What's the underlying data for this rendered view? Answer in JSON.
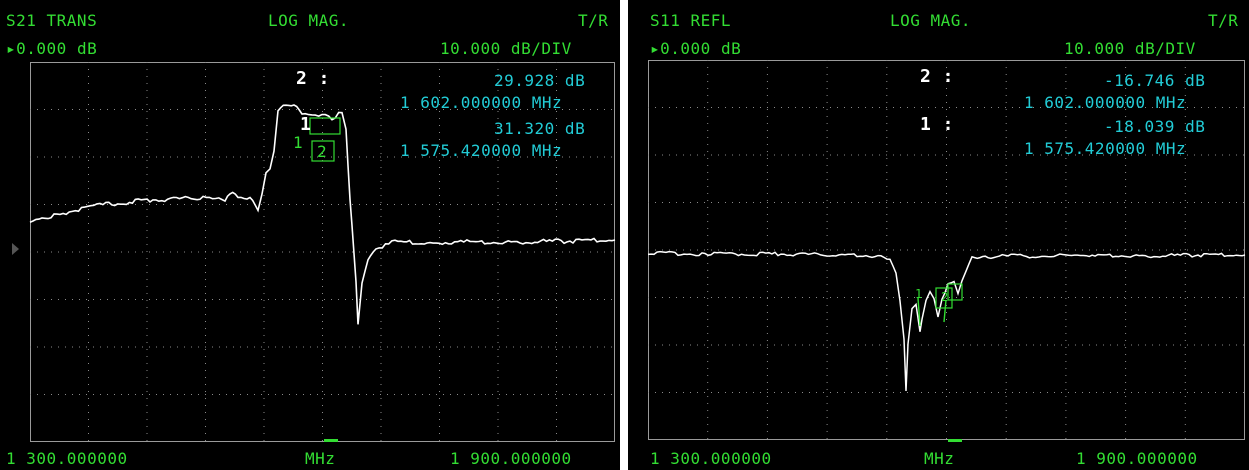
{
  "screens": [
    {
      "param": "S21 TRANS",
      "format": "LOG MAG.",
      "path": "T/R",
      "ref": "0.000 dB",
      "scale": "10.000 dB/DIV",
      "start": "1 300.000000",
      "units": "MHz",
      "stop": "1 900.000000",
      "marker2": {
        "label": "2 :",
        "value": "29.928 dB",
        "freq": "1 602.000000 MHz"
      },
      "marker1": {
        "label": "",
        "value": "31.320 dB",
        "freq": "1 575.420000 MHz"
      },
      "marker_tags": {
        "m1": "1",
        "m2": "2",
        "m1_active": "1"
      }
    },
    {
      "param": "S11 REFL",
      "format": "LOG MAG.",
      "path": "T/R",
      "ref": "0.000 dB",
      "scale": "10.000 dB/DIV",
      "start": "1 300.000000",
      "units": "MHz",
      "stop": "1 900.000000",
      "marker2": {
        "label": "2 :",
        "value": "-16.746 dB",
        "freq": "1 602.000000 MHz"
      },
      "marker1": {
        "label": "1 :",
        "value": "-18.039 dB",
        "freq": "1 575.420000 MHz"
      },
      "marker_tags": {
        "m1": "1",
        "m2": "2"
      }
    }
  ],
  "colors": {
    "label": "#33dd33",
    "readout": "#22ccd6",
    "trace": "#ffffff",
    "grid": "#9a9a9a",
    "background": "#000000"
  },
  "icons": {
    "ref_pointer": "triangle-right-icon"
  }
}
